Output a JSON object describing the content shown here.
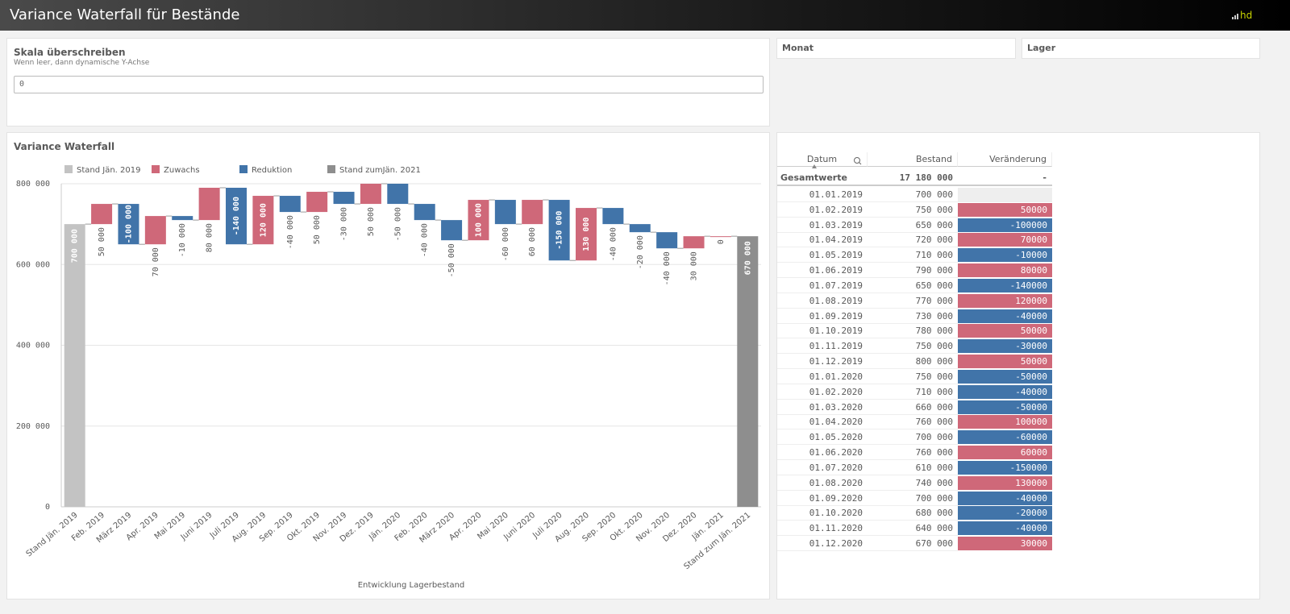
{
  "header": {
    "title": "Variance Waterfall für Bestände"
  },
  "scale_panel": {
    "title": "Skala überschreiben",
    "subtitle": "Wenn leer, dann dynamische Y-Achse",
    "input_value": "0"
  },
  "filters": [
    "Monat",
    "Lager"
  ],
  "chart_data": {
    "type": "waterfall",
    "title": "Variance Waterfall",
    "x_label": "Entwicklung Lagerbestand",
    "legend": [
      {
        "name": "Stand Jän. 2019",
        "color": "#c3c3c3"
      },
      {
        "name": "Zuwachs",
        "color": "#cf6879"
      },
      {
        "name": "Reduktion",
        "color": "#4174a9"
      },
      {
        "name": "Stand zumJän. 2021",
        "color": "#8e8e8e"
      }
    ],
    "categories": [
      "Stand Jän. 2019",
      "Feb. 2019",
      "März 2019",
      "Apr. 2019",
      "Mai 2019",
      "Juni 2019",
      "Juli 2019",
      "Aug. 2019",
      "Sep. 2019",
      "Okt. 2019",
      "Nov. 2019",
      "Dez. 2019",
      "Jän. 2020",
      "Feb. 2020",
      "März 2020",
      "Apr. 2020",
      "Mai 2020",
      "Juni 2020",
      "Juli 2020",
      "Aug. 2020",
      "Sep. 2020",
      "Okt. 2020",
      "Nov. 2020",
      "Dez. 2020",
      "Jän. 2021",
      "Stand zum Jän. 2021"
    ],
    "values": [
      700000,
      50000,
      -100000,
      70000,
      -10000,
      80000,
      -140000,
      120000,
      -40000,
      50000,
      -30000,
      50000,
      -50000,
      -40000,
      -50000,
      100000,
      -60000,
      60000,
      -150000,
      130000,
      -40000,
      -20000,
      -40000,
      30000,
      0,
      670000
    ],
    "value_labels": [
      "700 000",
      "50 000",
      "-100 000",
      "70 000",
      "-10 000",
      "80 000",
      "-140 000",
      "120 000",
      "-40 000",
      "50 000",
      "-30 000",
      "50 000",
      "-50 000",
      "-40 000",
      "-50 000",
      "100 000",
      "-60 000",
      "60 000",
      "-150 000",
      "130 000",
      "-40 000",
      "-20 000",
      "-40 000",
      "30 000",
      "0",
      "670 000"
    ],
    "ylim": [
      0,
      800000
    ],
    "yticks": [
      0,
      {
        "value": 200000,
        "label": "200 000"
      },
      {
        "value": 400000,
        "label": "400 000"
      },
      {
        "value": 600000,
        "label": "600 000"
      },
      {
        "value": 800000,
        "label": "800 000"
      }
    ],
    "grid": true
  },
  "table": {
    "columns": [
      "Datum",
      "Bestand",
      "Veränderung"
    ],
    "totals": [
      "Gesamtwerte",
      "17 180 000",
      "-"
    ],
    "positive_color": "#cf6879",
    "negative_color": "#4174a9",
    "rows": [
      [
        "01.01.2019",
        "700 000",
        null
      ],
      [
        "01.02.2019",
        "750 000",
        50000
      ],
      [
        "01.03.2019",
        "650 000",
        -100000
      ],
      [
        "01.04.2019",
        "720 000",
        70000
      ],
      [
        "01.05.2019",
        "710 000",
        -10000
      ],
      [
        "01.06.2019",
        "790 000",
        80000
      ],
      [
        "01.07.2019",
        "650 000",
        -140000
      ],
      [
        "01.08.2019",
        "770 000",
        120000
      ],
      [
        "01.09.2019",
        "730 000",
        -40000
      ],
      [
        "01.10.2019",
        "780 000",
        50000
      ],
      [
        "01.11.2019",
        "750 000",
        -30000
      ],
      [
        "01.12.2019",
        "800 000",
        50000
      ],
      [
        "01.01.2020",
        "750 000",
        -50000
      ],
      [
        "01.02.2020",
        "710 000",
        -40000
      ],
      [
        "01.03.2020",
        "660 000",
        -50000
      ],
      [
        "01.04.2020",
        "760 000",
        100000
      ],
      [
        "01.05.2020",
        "700 000",
        -60000
      ],
      [
        "01.06.2020",
        "760 000",
        60000
      ],
      [
        "01.07.2020",
        "610 000",
        -150000
      ],
      [
        "01.08.2020",
        "740 000",
        130000
      ],
      [
        "01.09.2020",
        "700 000",
        -40000
      ],
      [
        "01.10.2020",
        "680 000",
        -20000
      ],
      [
        "01.11.2020",
        "640 000",
        -40000
      ],
      [
        "01.12.2020",
        "670 000",
        30000
      ]
    ]
  }
}
